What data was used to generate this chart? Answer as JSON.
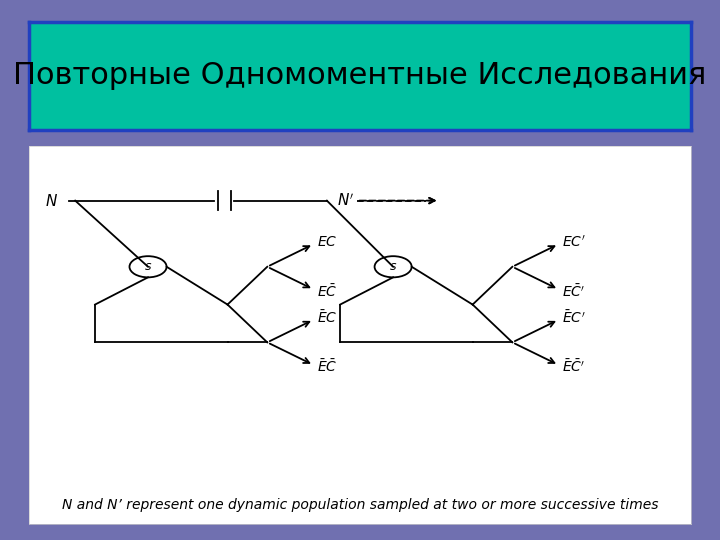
{
  "title": "Повторные Одномоментные Исследования",
  "title_bg": "#00c0a0",
  "title_border": "#2040c0",
  "slide_bg": "#7070b0",
  "diagram_bg": "#ffffff",
  "caption": "N and N’ represent one dynamic population sampled at two or more successive times",
  "title_fontsize": 22,
  "caption_fontsize": 10
}
